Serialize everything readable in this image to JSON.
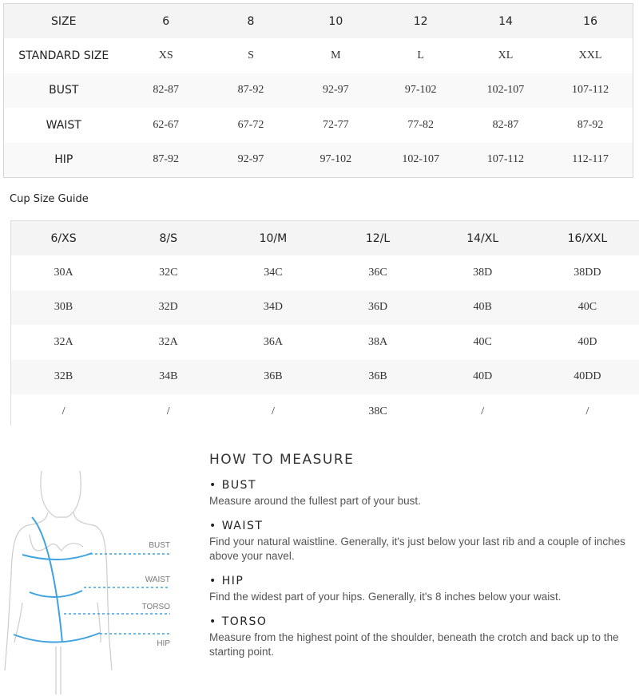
{
  "size_table": {
    "header": [
      "SIZE",
      "6",
      "8",
      "10",
      "12",
      "14",
      "16"
    ],
    "rows": [
      [
        "STANDARD SIZE",
        "XS",
        "S",
        "M",
        "L",
        "XL",
        "XXL"
      ],
      [
        "BUST",
        "82-87",
        "87-92",
        "92-97",
        "97-102",
        "102-107",
        "107-112"
      ],
      [
        "WAIST",
        "62-67",
        "67-72",
        "72-77",
        "77-82",
        "82-87",
        "87-92"
      ],
      [
        "HIP",
        "87-92",
        "92-97",
        "97-102",
        "102-107",
        "107-112",
        "112-117"
      ]
    ]
  },
  "cup_guide": {
    "title": "Cup Size Guide",
    "header": [
      "6/XS",
      "8/S",
      "10/M",
      "12/L",
      "14/XL",
      "16/XXL"
    ],
    "rows": [
      [
        "30A",
        "32C",
        "34C",
        "36C",
        "38D",
        "38DD"
      ],
      [
        "30B",
        "32D",
        "34D",
        "36D",
        "40B",
        "40C"
      ],
      [
        "32A",
        "32A",
        "36A",
        "38A",
        "40C",
        "40D"
      ],
      [
        "32B",
        "34B",
        "36B",
        "36B",
        "40D",
        "40DD"
      ],
      [
        "/",
        "/",
        "/",
        "38C",
        "/",
        "/"
      ]
    ]
  },
  "figure": {
    "labels": [
      "BUST",
      "WAIST",
      "TORSO",
      "HIP"
    ],
    "accent": "#3fa3e0"
  },
  "how_to": {
    "title": "HOW TO MEASURE",
    "sections": [
      {
        "heading": "• BUST",
        "text": "Measure around the fullest part of your bust."
      },
      {
        "heading": "• WAIST",
        "text": "Find your natural waistline. Generally, it's just below your last rib and a couple of inches above your navel."
      },
      {
        "heading": "• HIP",
        "text": "Find the widest part of your hips. Generally, it's 8 inches below your waist."
      },
      {
        "heading": "• TORSO",
        "text": "Measure from the highest point of the shoulder, beneath the crotch and back up to the starting point."
      }
    ]
  }
}
